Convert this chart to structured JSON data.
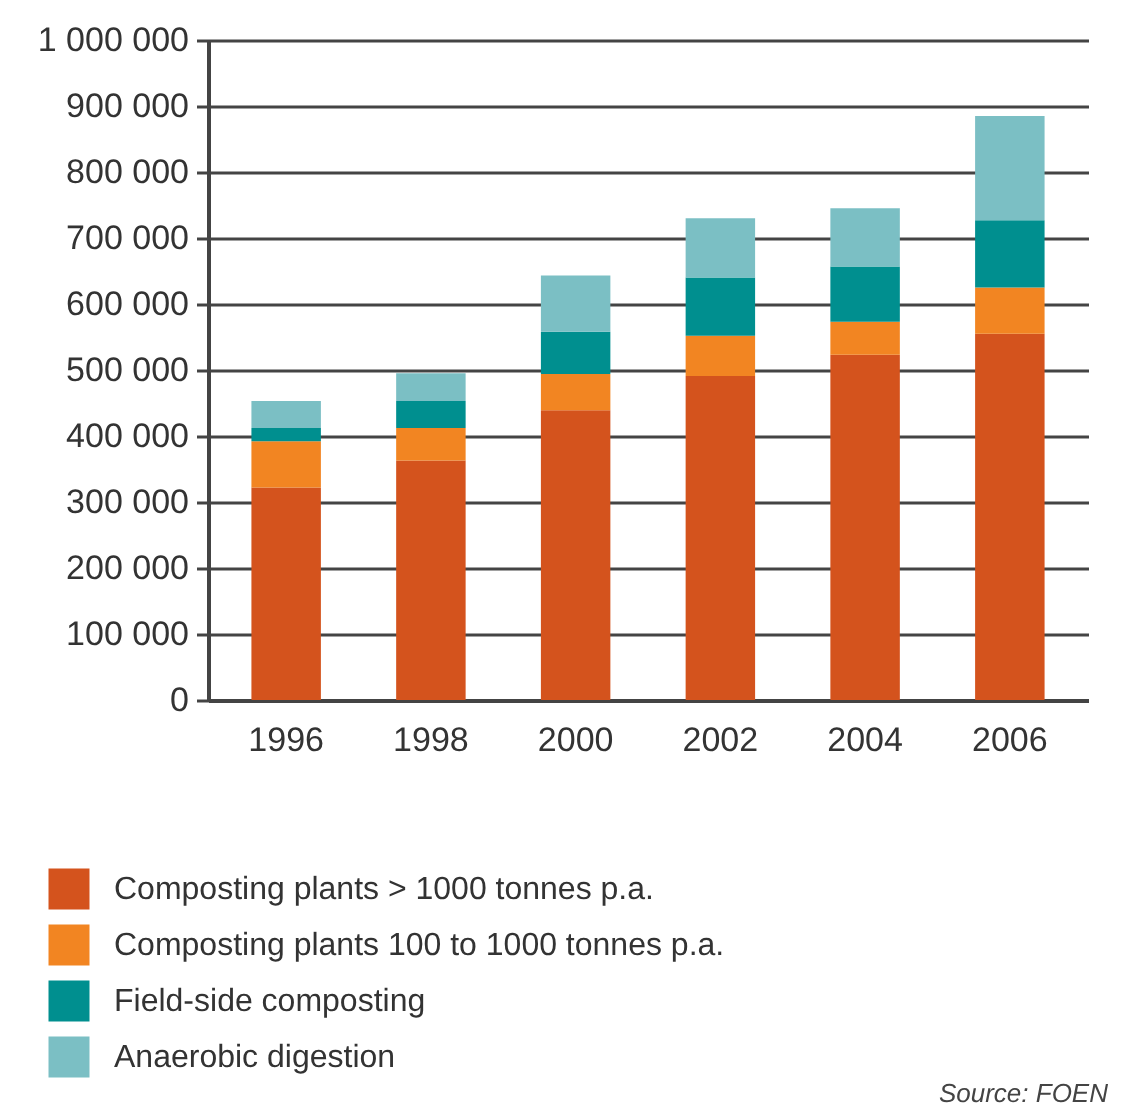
{
  "chart_data": {
    "type": "bar",
    "stacked": true,
    "categories": [
      "1996",
      "1998",
      "2000",
      "2002",
      "2004",
      "2006"
    ],
    "series": [
      {
        "name": "Composting plants > 1000 tonnes p.a.",
        "color": "#d4531d",
        "values": [
          322000,
          363000,
          439000,
          491000,
          523000,
          555000
        ]
      },
      {
        "name": "Composting plants 100 to 1000 tonnes p.a.",
        "color": "#f28522",
        "values": [
          70000,
          49000,
          55000,
          61000,
          50000,
          70000
        ]
      },
      {
        "name": "Field-side composting",
        "color": "#008f8f",
        "values": [
          20000,
          41000,
          64000,
          88000,
          84000,
          102000
        ]
      },
      {
        "name": "Anaerobic digestion",
        "color": "#7bbfc4",
        "values": [
          41000,
          42000,
          85000,
          90000,
          88000,
          158000
        ]
      }
    ],
    "ylim": [
      0,
      1000000
    ],
    "yticks": [
      0,
      {
        "value": 100000,
        "label": "100 000"
      },
      {
        "value": 200000,
        "label": "200 000"
      },
      {
        "value": 300000,
        "label": "300 000"
      },
      {
        "value": 400000,
        "label": "400 000"
      },
      {
        "value": 500000,
        "label": "500 000"
      },
      {
        "value": 600000,
        "label": "600 000"
      },
      {
        "value": 700000,
        "label": "700 000"
      },
      {
        "value": 800000,
        "label": "800 000"
      },
      {
        "value": 900000,
        "label": "900 000"
      },
      {
        "value": 1000000,
        "label": "1 000 000"
      }
    ],
    "grid": "y",
    "legend": "bottom",
    "annotations": [
      "Source: FOEN"
    ]
  }
}
